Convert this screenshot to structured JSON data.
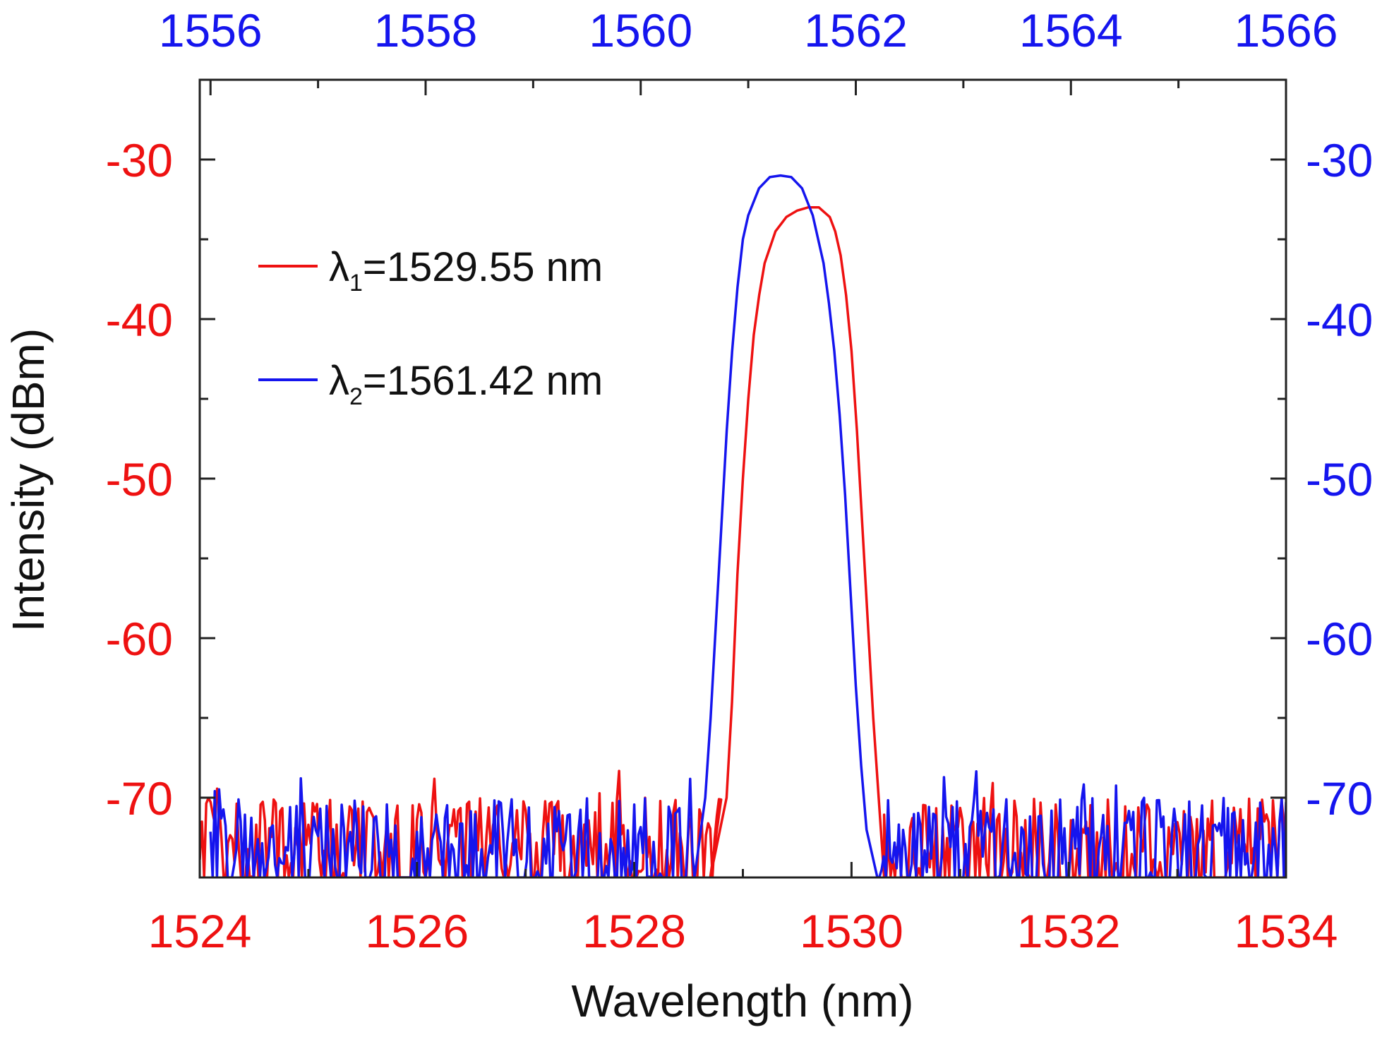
{
  "chart_data": {
    "type": "line",
    "title": "",
    "xlabel": "Wavelength (nm)",
    "ylabel": "Intensity (dBm)",
    "grid": false,
    "legend_position": "upper-left",
    "x_bottom": {
      "range": [
        1524,
        1534
      ],
      "ticks": [
        "1524",
        "1526",
        "1528",
        "1530",
        "1532",
        "1534"
      ],
      "color": "#ee1111"
    },
    "x_top": {
      "range": [
        1555.9,
        1566.0
      ],
      "ticks": [
        "1556",
        "1558",
        "1560",
        "1562",
        "1564",
        "1566"
      ],
      "color": "#1515ee"
    },
    "y_left": {
      "range": [
        -75,
        -25
      ],
      "ticks": [
        "-30",
        "-40",
        "-50",
        "-60",
        "-70"
      ],
      "color": "#ee1111"
    },
    "y_right": {
      "range": [
        -75,
        -25
      ],
      "ticks": [
        "-30",
        "-40",
        "-50",
        "-60",
        "-70"
      ],
      "color": "#1515ee"
    },
    "series": [
      {
        "name": "λ1=1529.55 nm",
        "label_main": "λ",
        "label_sub": "1",
        "label_rest": "=1529.55 nm",
        "color": "#ee1111",
        "axis": "bottom",
        "noise_floor": [
          -75,
          -70
        ],
        "noise_range": [
          [
            1524.0,
            1528.8
          ],
          [
            1530.3,
            1534.0
          ]
        ],
        "x": [
          1528.7,
          1528.85,
          1528.9,
          1528.95,
          1529.0,
          1529.05,
          1529.1,
          1529.15,
          1529.2,
          1529.3,
          1529.4,
          1529.5,
          1529.6,
          1529.7,
          1529.8,
          1529.85,
          1529.9,
          1529.95,
          1530.0,
          1530.05,
          1530.1,
          1530.15,
          1530.2,
          1530.25,
          1530.3
        ],
        "y": [
          -75,
          -70,
          -64,
          -56,
          -50,
          -45,
          -41,
          -38.5,
          -36.5,
          -34.5,
          -33.6,
          -33.2,
          -33.0,
          -33.0,
          -33.6,
          -34.5,
          -36.0,
          -38.5,
          -42,
          -47,
          -53,
          -59,
          -65,
          -70,
          -75
        ]
      },
      {
        "name": "λ2=1561.42 nm",
        "label_main": "λ",
        "label_sub": "2",
        "label_rest": "=1561.42 nm",
        "color": "#1515ee",
        "axis": "top",
        "noise_floor": [
          -75,
          -70
        ],
        "noise_range": [
          [
            1556.0,
            1560.5
          ],
          [
            1562.2,
            1566.0
          ]
        ],
        "x": [
          1560.5,
          1560.6,
          1560.65,
          1560.7,
          1560.75,
          1560.8,
          1560.85,
          1560.9,
          1560.95,
          1561.0,
          1561.1,
          1561.2,
          1561.3,
          1561.4,
          1561.5,
          1561.6,
          1561.7,
          1561.75,
          1561.8,
          1561.85,
          1561.9,
          1561.95,
          1562.0,
          1562.05,
          1562.1,
          1562.2
        ],
        "y": [
          -75,
          -70,
          -65,
          -59,
          -53,
          -47,
          -42,
          -38,
          -35,
          -33.5,
          -31.8,
          -31.1,
          -31.0,
          -31.1,
          -31.8,
          -33.5,
          -36.5,
          -39,
          -42,
          -46,
          -51,
          -57,
          -63,
          -68,
          -72,
          -75
        ]
      }
    ]
  }
}
